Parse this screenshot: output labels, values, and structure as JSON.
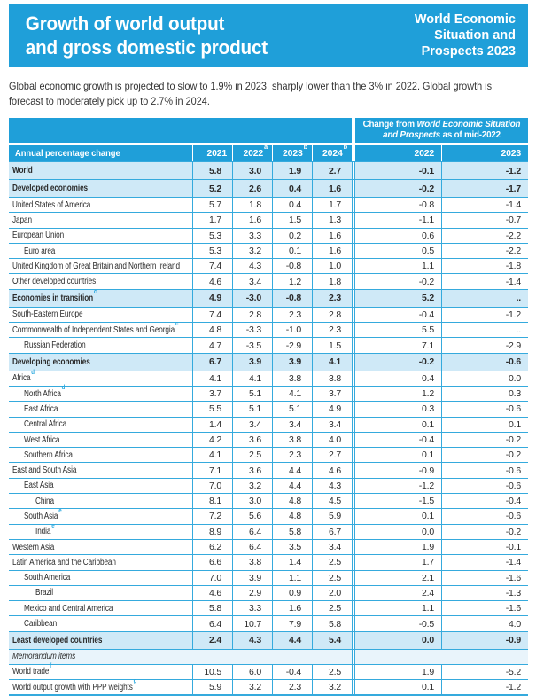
{
  "colors": {
    "accent_blue": "#1f9fd9",
    "grid_line": "#35aadd",
    "bold_row_bg": "#cfe9f7",
    "memorandum_row_bg": "#e9f4fb",
    "footnote_marker_blue": "#29a8df"
  },
  "banner": {
    "title_line1": "Growth of world output",
    "title_line2": "and gross domestic product",
    "edition_line1": "World Economic",
    "edition_line2": "Situation and",
    "edition_line3": "Prospects 2023"
  },
  "intro": "Global economic growth is projected to slow to 1.9% in 2023, sharply lower than the 3% in 2022. Global growth is forecast to moderately pick up to 2.7% in 2024.",
  "table": {
    "change_header": {
      "prefix": "Change from ",
      "italic": "World Economic Situation and Prospects",
      "suffix": " as of mid-2022"
    },
    "label_header": "Annual percentage change",
    "year_columns": [
      {
        "label": "2021",
        "sup": ""
      },
      {
        "label": "2022",
        "sup": "a"
      },
      {
        "label": "2023",
        "sup": "b"
      },
      {
        "label": "2024",
        "sup": "b"
      }
    ],
    "change_columns": [
      "2022",
      "2023"
    ],
    "rows": [
      {
        "label": "World",
        "sup": "",
        "indent": 0,
        "style": "bold",
        "values": [
          "5.8",
          "3.0",
          "1.9",
          "2.7"
        ],
        "changes": [
          "-0.1",
          "-1.2"
        ]
      },
      {
        "label": "Developed economies",
        "sup": "",
        "indent": 0,
        "style": "bold",
        "values": [
          "5.2",
          "2.6",
          "0.4",
          "1.6"
        ],
        "changes": [
          "-0.2",
          "-1.7"
        ]
      },
      {
        "label": "United States of America",
        "sup": "",
        "indent": 0,
        "style": "normal",
        "values": [
          "5.7",
          "1.8",
          "0.4",
          "1.7"
        ],
        "changes": [
          "-0.8",
          "-1.4"
        ]
      },
      {
        "label": "Japan",
        "sup": "",
        "indent": 0,
        "style": "normal",
        "values": [
          "1.7",
          "1.6",
          "1.5",
          "1.3"
        ],
        "changes": [
          "-1.1",
          "-0.7"
        ]
      },
      {
        "label": "European Union",
        "sup": "",
        "indent": 0,
        "style": "normal",
        "values": [
          "5.3",
          "3.3",
          "0.2",
          "1.6"
        ],
        "changes": [
          "0.6",
          "-2.2"
        ]
      },
      {
        "label": "Euro area",
        "sup": "",
        "indent": 1,
        "style": "normal",
        "values": [
          "5.3",
          "3.2",
          "0.1",
          "1.6"
        ],
        "changes": [
          "0.5",
          "-2.2"
        ]
      },
      {
        "label": "United Kingdom of Great Britain and Northern Ireland",
        "sup": "",
        "indent": 0,
        "style": "normal",
        "values": [
          "7.4",
          "4.3",
          "-0.8",
          "1.0"
        ],
        "changes": [
          "1.1",
          "-1.8"
        ]
      },
      {
        "label": "Other developed countries",
        "sup": "",
        "indent": 0,
        "style": "normal",
        "values": [
          "4.6",
          "3.4",
          "1.2",
          "1.8"
        ],
        "changes": [
          "-0.2",
          "-1.4"
        ]
      },
      {
        "label": "Economies in transition",
        "sup": "c",
        "indent": 0,
        "style": "bold",
        "values": [
          "4.9",
          "-3.0",
          "-0.8",
          "2.3"
        ],
        "changes": [
          "5.2",
          ".."
        ]
      },
      {
        "label": "South-Eastern Europe",
        "sup": "",
        "indent": 0,
        "style": "normal",
        "values": [
          "7.4",
          "2.8",
          "2.3",
          "2.8"
        ],
        "changes": [
          "-0.4",
          "-1.2"
        ]
      },
      {
        "label": "Commonwealth of Independent States and Georgia",
        "sup": "c",
        "indent": 0,
        "style": "normal",
        "values": [
          "4.8",
          "-3.3",
          "-1.0",
          "2.3"
        ],
        "changes": [
          "5.5",
          ".."
        ]
      },
      {
        "label": "Russian Federation",
        "sup": "",
        "indent": 1,
        "style": "normal",
        "values": [
          "4.7",
          "-3.5",
          "-2.9",
          "1.5"
        ],
        "changes": [
          "7.1",
          "-2.9"
        ]
      },
      {
        "label": "Developing economies",
        "sup": "",
        "indent": 0,
        "style": "bold",
        "values": [
          "6.7",
          "3.9",
          "3.9",
          "4.1"
        ],
        "changes": [
          "-0.2",
          "-0.6"
        ]
      },
      {
        "label": "Africa",
        "sup": "d",
        "indent": 0,
        "style": "normal",
        "values": [
          "4.1",
          "4.1",
          "3.8",
          "3.8"
        ],
        "changes": [
          "0.4",
          "0.0"
        ]
      },
      {
        "label": "North Africa",
        "sup": "d",
        "indent": 1,
        "style": "normal",
        "values": [
          "3.7",
          "5.1",
          "4.1",
          "3.7"
        ],
        "changes": [
          "1.2",
          "0.3"
        ]
      },
      {
        "label": "East Africa",
        "sup": "",
        "indent": 1,
        "style": "normal",
        "values": [
          "5.5",
          "5.1",
          "5.1",
          "4.9"
        ],
        "changes": [
          "0.3",
          "-0.6"
        ]
      },
      {
        "label": "Central Africa",
        "sup": "",
        "indent": 1,
        "style": "normal",
        "values": [
          "1.4",
          "3.4",
          "3.4",
          "3.4"
        ],
        "changes": [
          "0.1",
          "0.1"
        ]
      },
      {
        "label": "West Africa",
        "sup": "",
        "indent": 1,
        "style": "normal",
        "values": [
          "4.2",
          "3.6",
          "3.8",
          "4.0"
        ],
        "changes": [
          "-0.4",
          "-0.2"
        ]
      },
      {
        "label": "Southern Africa",
        "sup": "",
        "indent": 1,
        "style": "normal",
        "values": [
          "4.1",
          "2.5",
          "2.3",
          "2.7"
        ],
        "changes": [
          "0.1",
          "-0.2"
        ]
      },
      {
        "label": "East and South Asia",
        "sup": "",
        "indent": 0,
        "style": "normal",
        "values": [
          "7.1",
          "3.6",
          "4.4",
          "4.6"
        ],
        "changes": [
          "-0.9",
          "-0.6"
        ]
      },
      {
        "label": "East Asia",
        "sup": "",
        "indent": 1,
        "style": "normal",
        "values": [
          "7.0",
          "3.2",
          "4.4",
          "4.3"
        ],
        "changes": [
          "-1.2",
          "-0.6"
        ]
      },
      {
        "label": "China",
        "sup": "",
        "indent": 2,
        "style": "normal",
        "values": [
          "8.1",
          "3.0",
          "4.8",
          "4.5"
        ],
        "changes": [
          "-1.5",
          "-0.4"
        ]
      },
      {
        "label": "South Asia",
        "sup": "e",
        "indent": 1,
        "style": "normal",
        "values": [
          "7.2",
          "5.6",
          "4.8",
          "5.9"
        ],
        "changes": [
          "0.1",
          "-0.6"
        ]
      },
      {
        "label": "India",
        "sup": "e",
        "indent": 2,
        "style": "normal",
        "values": [
          "8.9",
          "6.4",
          "5.8",
          "6.7"
        ],
        "changes": [
          "0.0",
          "-0.2"
        ]
      },
      {
        "label": "Western Asia",
        "sup": "",
        "indent": 0,
        "style": "normal",
        "values": [
          "6.2",
          "6.4",
          "3.5",
          "3.4"
        ],
        "changes": [
          "1.9",
          "-0.1"
        ]
      },
      {
        "label": "Latin America and the Caribbean",
        "sup": "",
        "indent": 0,
        "style": "normal",
        "values": [
          "6.6",
          "3.8",
          "1.4",
          "2.5"
        ],
        "changes": [
          "1.7",
          "-1.4"
        ]
      },
      {
        "label": "South America",
        "sup": "",
        "indent": 1,
        "style": "normal",
        "values": [
          "7.0",
          "3.9",
          "1.1",
          "2.5"
        ],
        "changes": [
          "2.1",
          "-1.6"
        ]
      },
      {
        "label": "Brazil",
        "sup": "",
        "indent": 2,
        "style": "normal",
        "values": [
          "4.6",
          "2.9",
          "0.9",
          "2.0"
        ],
        "changes": [
          "2.4",
          "-1.3"
        ]
      },
      {
        "label": "Mexico and Central America",
        "sup": "",
        "indent": 1,
        "style": "normal",
        "values": [
          "5.8",
          "3.3",
          "1.6",
          "2.5"
        ],
        "changes": [
          "1.1",
          "-1.6"
        ]
      },
      {
        "label": "Caribbean",
        "sup": "",
        "indent": 1,
        "style": "normal",
        "values": [
          "6.4",
          "10.7",
          "7.9",
          "5.8"
        ],
        "changes": [
          "-0.5",
          "4.0"
        ]
      },
      {
        "label": "Least developed countries",
        "sup": "",
        "indent": 0,
        "style": "bold",
        "values": [
          "2.4",
          "4.3",
          "4.4",
          "5.4"
        ],
        "changes": [
          "0.0",
          "-0.9"
        ]
      },
      {
        "label": "Memorandum items",
        "sup": "",
        "indent": 0,
        "style": "section",
        "values": [
          "",
          "",
          "",
          ""
        ],
        "changes": [
          "",
          ""
        ]
      },
      {
        "label": "World trade",
        "sup": "f",
        "indent": 0,
        "style": "normal",
        "values": [
          "10.5",
          "6.0",
          "-0.4",
          "2.5"
        ],
        "changes": [
          "1.9",
          "-5.2"
        ]
      },
      {
        "label": "World output growth with PPP weights",
        "sup": "g",
        "indent": 0,
        "style": "normal",
        "values": [
          "5.9",
          "3.2",
          "2.3",
          "3.2"
        ],
        "changes": [
          "0.1",
          "-1.2"
        ]
      }
    ]
  }
}
